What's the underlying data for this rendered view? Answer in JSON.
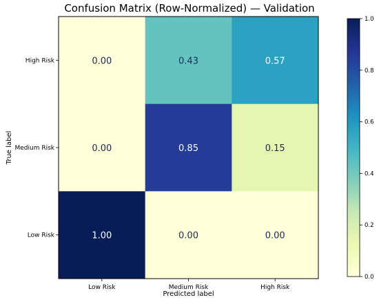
{
  "chart_data": {
    "type": "heatmap",
    "title": "Confusion Matrix (Row-Normalized) — Validation",
    "xlabel": "Predicted label",
    "ylabel": "True label",
    "x_categories": [
      "Low Risk",
      "Medium Risk",
      "High Risk"
    ],
    "y_categories": [
      "High Risk",
      "Medium Risk",
      "Low Risk"
    ],
    "values": [
      [
        0.0,
        0.43,
        0.57
      ],
      [
        0.0,
        0.85,
        0.15
      ],
      [
        1.0,
        0.0,
        0.0
      ]
    ],
    "value_labels": [
      [
        "0.00",
        "0.43",
        "0.57"
      ],
      [
        "0.00",
        "0.85",
        "0.15"
      ],
      [
        "1.00",
        "0.00",
        "0.00"
      ]
    ],
    "colormap": "YlGnBu",
    "colorbar": {
      "range": [
        0.0,
        1.0
      ],
      "ticks": [
        0.0,
        0.2,
        0.4,
        0.6,
        0.8,
        1.0
      ],
      "tick_labels": [
        "0.0",
        "0.2",
        "0.4",
        "0.6",
        "0.8",
        "1.0"
      ]
    },
    "grid": false
  }
}
